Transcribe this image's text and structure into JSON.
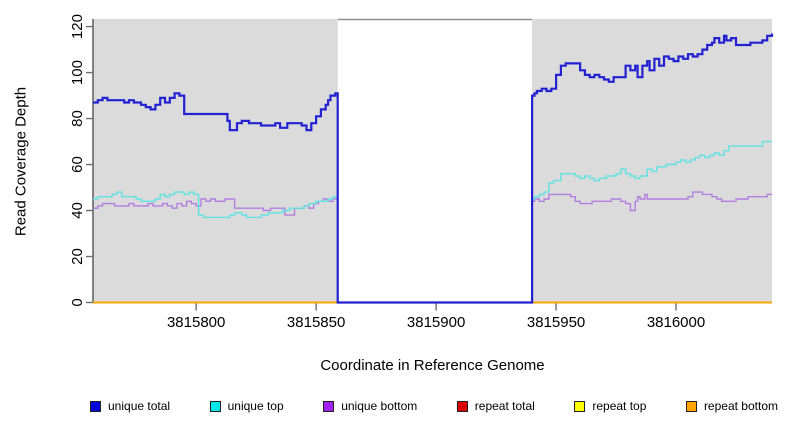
{
  "chart_data": {
    "type": "line",
    "subtype": "step-coverage",
    "xlabel": "Coordinate in Reference Genome",
    "ylabel": "Read Coverage Depth",
    "xlim": [
      3815757,
      3816040
    ],
    "ylim": [
      0,
      123.3
    ],
    "x_ticks": [
      3815800,
      3815850,
      3815900,
      3815950,
      3816000
    ],
    "y_ticks": [
      0,
      20,
      40,
      60,
      80,
      100,
      120
    ],
    "grid": "off",
    "plot_bg": "#dbdbdb",
    "figure_bg": "#ffffff",
    "axis_color": "#3a3a3a",
    "tick_color": "#6e6e6e",
    "gap_region": {
      "start": 3815859,
      "end": 3815940,
      "fill": "#ffffff",
      "top_border": "#8f8f8f"
    },
    "draw_order": [
      "repeat total",
      "repeat top",
      "repeat bottom",
      "__gap__",
      "unique bottom",
      "unique top",
      "unique total"
    ],
    "series": [
      {
        "name": "unique total",
        "color": "#2222d2",
        "width": 2.2,
        "points": [
          [
            3815757,
            87
          ],
          [
            3815759,
            88
          ],
          [
            3815761,
            89
          ],
          [
            3815763,
            88
          ],
          [
            3815767,
            88
          ],
          [
            3815770,
            87
          ],
          [
            3815772,
            88
          ],
          [
            3815774,
            87
          ],
          [
            3815777,
            86
          ],
          [
            3815779,
            85
          ],
          [
            3815781,
            84
          ],
          [
            3815783,
            86
          ],
          [
            3815785,
            89
          ],
          [
            3815787,
            87
          ],
          [
            3815789,
            89
          ],
          [
            3815791,
            91
          ],
          [
            3815793,
            90
          ],
          [
            3815795,
            82
          ],
          [
            3815797,
            82
          ],
          [
            3815811,
            82
          ],
          [
            3815813,
            79
          ],
          [
            3815814,
            75
          ],
          [
            3815817,
            78
          ],
          [
            3815819,
            79
          ],
          [
            3815822,
            78
          ],
          [
            3815824,
            78
          ],
          [
            3815827,
            77
          ],
          [
            3815830,
            77
          ],
          [
            3815833,
            78
          ],
          [
            3815835,
            76
          ],
          [
            3815838,
            78
          ],
          [
            3815841,
            78
          ],
          [
            3815844,
            77
          ],
          [
            3815846,
            75
          ],
          [
            3815848,
            78
          ],
          [
            3815850,
            81
          ],
          [
            3815852,
            84
          ],
          [
            3815854,
            86
          ],
          [
            3815855,
            88
          ],
          [
            3815856,
            90
          ],
          [
            3815858,
            91
          ],
          [
            3815859,
            0
          ],
          [
            3815940,
            90
          ],
          [
            3815941,
            91
          ],
          [
            3815942,
            92
          ],
          [
            3815944,
            93
          ],
          [
            3815946,
            92
          ],
          [
            3815948,
            93
          ],
          [
            3815950,
            99
          ],
          [
            3815952,
            103
          ],
          [
            3815954,
            104
          ],
          [
            3815958,
            104
          ],
          [
            3815960,
            101
          ],
          [
            3815962,
            99
          ],
          [
            3815964,
            98
          ],
          [
            3815966,
            99
          ],
          [
            3815968,
            98
          ],
          [
            3815970,
            97
          ],
          [
            3815972,
            96
          ],
          [
            3815974,
            98
          ],
          [
            3815977,
            98
          ],
          [
            3815979,
            103
          ],
          [
            3815981,
            101
          ],
          [
            3815983,
            103
          ],
          [
            3815984,
            98
          ],
          [
            3815986,
            103
          ],
          [
            3815988,
            105
          ],
          [
            3815989,
            101
          ],
          [
            3815991,
            106
          ],
          [
            3815993,
            103
          ],
          [
            3815995,
            107
          ],
          [
            3815997,
            106
          ],
          [
            3815999,
            105
          ],
          [
            3816001,
            107
          ],
          [
            3816003,
            106
          ],
          [
            3816005,
            108
          ],
          [
            3816007,
            107
          ],
          [
            3816009,
            108
          ],
          [
            3816011,
            110
          ],
          [
            3816013,
            112
          ],
          [
            3816015,
            113
          ],
          [
            3816016,
            115
          ],
          [
            3816018,
            113
          ],
          [
            3816020,
            116
          ],
          [
            3816021,
            114
          ],
          [
            3816023,
            115
          ],
          [
            3816025,
            112
          ],
          [
            3816028,
            112
          ],
          [
            3816031,
            113
          ],
          [
            3816034,
            113
          ],
          [
            3816036,
            114
          ],
          [
            3816038,
            116
          ],
          [
            3816040,
            117
          ]
        ]
      },
      {
        "name": "unique top",
        "color": "#5fe2e2",
        "width": 1.4,
        "points": [
          [
            3815757,
            45
          ],
          [
            3815759,
            46
          ],
          [
            3815762,
            46
          ],
          [
            3815765,
            47
          ],
          [
            3815767,
            48
          ],
          [
            3815769,
            46
          ],
          [
            3815772,
            46
          ],
          [
            3815775,
            45
          ],
          [
            3815777,
            44
          ],
          [
            3815780,
            44
          ],
          [
            3815783,
            45
          ],
          [
            3815785,
            47
          ],
          [
            3815787,
            46
          ],
          [
            3815789,
            47
          ],
          [
            3815791,
            48
          ],
          [
            3815793,
            48
          ],
          [
            3815795,
            47
          ],
          [
            3815797,
            48
          ],
          [
            3815799,
            47
          ],
          [
            3815801,
            38
          ],
          [
            3815803,
            37
          ],
          [
            3815812,
            37
          ],
          [
            3815814,
            38
          ],
          [
            3815816,
            39
          ],
          [
            3815819,
            38
          ],
          [
            3815821,
            37
          ],
          [
            3815824,
            37
          ],
          [
            3815827,
            38
          ],
          [
            3815830,
            39
          ],
          [
            3815833,
            39
          ],
          [
            3815836,
            40
          ],
          [
            3815839,
            41
          ],
          [
            3815842,
            41
          ],
          [
            3815845,
            42
          ],
          [
            3815847,
            43
          ],
          [
            3815850,
            44
          ],
          [
            3815852,
            44
          ],
          [
            3815855,
            45
          ],
          [
            3815857,
            46
          ],
          [
            3815859,
            0
          ],
          [
            3815940,
            45
          ],
          [
            3815941,
            46
          ],
          [
            3815943,
            47
          ],
          [
            3815945,
            48
          ],
          [
            3815947,
            52
          ],
          [
            3815949,
            53
          ],
          [
            3815952,
            56
          ],
          [
            3815955,
            56
          ],
          [
            3815958,
            55
          ],
          [
            3815960,
            54
          ],
          [
            3815962,
            55
          ],
          [
            3815964,
            54
          ],
          [
            3815966,
            53
          ],
          [
            3815968,
            54
          ],
          [
            3815971,
            55
          ],
          [
            3815973,
            55
          ],
          [
            3815975,
            56
          ],
          [
            3815977,
            58
          ],
          [
            3815979,
            56
          ],
          [
            3815981,
            55
          ],
          [
            3815983,
            54
          ],
          [
            3815985,
            55
          ],
          [
            3815988,
            58
          ],
          [
            3815990,
            57
          ],
          [
            3815992,
            59
          ],
          [
            3815994,
            59
          ],
          [
            3815996,
            60
          ],
          [
            3815998,
            60
          ],
          [
            3816000,
            61
          ],
          [
            3816002,
            62
          ],
          [
            3816004,
            61
          ],
          [
            3816006,
            62
          ],
          [
            3816008,
            63
          ],
          [
            3816010,
            64
          ],
          [
            3816012,
            63
          ],
          [
            3816014,
            64
          ],
          [
            3816016,
            65
          ],
          [
            3816018,
            64
          ],
          [
            3816020,
            66
          ],
          [
            3816022,
            68
          ],
          [
            3816034,
            68
          ],
          [
            3816036,
            70
          ],
          [
            3816040,
            70
          ]
        ]
      },
      {
        "name": "unique bottom",
        "color": "#b27ee2",
        "width": 1.4,
        "points": [
          [
            3815757,
            41
          ],
          [
            3815759,
            42
          ],
          [
            3815761,
            43
          ],
          [
            3815764,
            43
          ],
          [
            3815766,
            42
          ],
          [
            3815769,
            42
          ],
          [
            3815772,
            43
          ],
          [
            3815774,
            42
          ],
          [
            3815777,
            42
          ],
          [
            3815780,
            43
          ],
          [
            3815782,
            42
          ],
          [
            3815784,
            42
          ],
          [
            3815786,
            43
          ],
          [
            3815788,
            42
          ],
          [
            3815790,
            41
          ],
          [
            3815792,
            43
          ],
          [
            3815794,
            42
          ],
          [
            3815796,
            44
          ],
          [
            3815798,
            43
          ],
          [
            3815800,
            42
          ],
          [
            3815802,
            45
          ],
          [
            3815804,
            44
          ],
          [
            3815806,
            45
          ],
          [
            3815808,
            44
          ],
          [
            3815812,
            45
          ],
          [
            3815814,
            45
          ],
          [
            3815816,
            41
          ],
          [
            3815819,
            41
          ],
          [
            3815822,
            41
          ],
          [
            3815825,
            41
          ],
          [
            3815828,
            40
          ],
          [
            3815831,
            41
          ],
          [
            3815834,
            41
          ],
          [
            3815837,
            38
          ],
          [
            3815839,
            38
          ],
          [
            3815841,
            41
          ],
          [
            3815843,
            41
          ],
          [
            3815845,
            42
          ],
          [
            3815847,
            41
          ],
          [
            3815849,
            43
          ],
          [
            3815851,
            44
          ],
          [
            3815853,
            45
          ],
          [
            3815855,
            44
          ],
          [
            3815857,
            45
          ],
          [
            3815859,
            0
          ],
          [
            3815940,
            44
          ],
          [
            3815941,
            45
          ],
          [
            3815943,
            44
          ],
          [
            3815945,
            45
          ],
          [
            3815947,
            47
          ],
          [
            3815950,
            47
          ],
          [
            3815953,
            47
          ],
          [
            3815956,
            46
          ],
          [
            3815958,
            44
          ],
          [
            3815960,
            43
          ],
          [
            3815963,
            43
          ],
          [
            3815965,
            44
          ],
          [
            3815968,
            44
          ],
          [
            3815971,
            44
          ],
          [
            3815973,
            45
          ],
          [
            3815975,
            45
          ],
          [
            3815977,
            44
          ],
          [
            3815979,
            43
          ],
          [
            3815981,
            40
          ],
          [
            3815983,
            44
          ],
          [
            3815984,
            46
          ],
          [
            3815985,
            45
          ],
          [
            3815987,
            47
          ],
          [
            3815988,
            45
          ],
          [
            3815991,
            45
          ],
          [
            3815994,
            45
          ],
          [
            3815997,
            45
          ],
          [
            3816000,
            45
          ],
          [
            3816003,
            45
          ],
          [
            3816005,
            46
          ],
          [
            3816007,
            48
          ],
          [
            3816009,
            48
          ],
          [
            3816011,
            47
          ],
          [
            3816013,
            47
          ],
          [
            3816015,
            46
          ],
          [
            3816017,
            45
          ],
          [
            3816019,
            44
          ],
          [
            3816022,
            44
          ],
          [
            3816025,
            45
          ],
          [
            3816028,
            45
          ],
          [
            3816030,
            46
          ],
          [
            3816033,
            46
          ],
          [
            3816036,
            46
          ],
          [
            3816038,
            47
          ],
          [
            3816040,
            47
          ]
        ]
      },
      {
        "name": "repeat total",
        "color": "#dd0000",
        "width": 1.4,
        "points": [
          [
            3815757,
            0
          ],
          [
            3816040,
            0
          ]
        ]
      },
      {
        "name": "repeat top",
        "color": "#ffff00",
        "width": 1.4,
        "points": [
          [
            3815757,
            0
          ],
          [
            3816040,
            0
          ]
        ]
      },
      {
        "name": "repeat bottom",
        "color": "#ffa500",
        "width": 1.8,
        "points": [
          [
            3815757,
            0
          ],
          [
            3816040,
            0
          ]
        ]
      }
    ],
    "legend": [
      {
        "label": "unique total",
        "color": "#0000dc"
      },
      {
        "label": "unique top",
        "color": "#00e8e8"
      },
      {
        "label": "unique bottom",
        "color": "#a020f0"
      },
      {
        "label": "repeat total",
        "color": "#dc0000"
      },
      {
        "label": "repeat top",
        "color": "#ffff00"
      },
      {
        "label": "repeat bottom",
        "color": "#ffa500"
      }
    ],
    "legend_position": "bottom"
  }
}
